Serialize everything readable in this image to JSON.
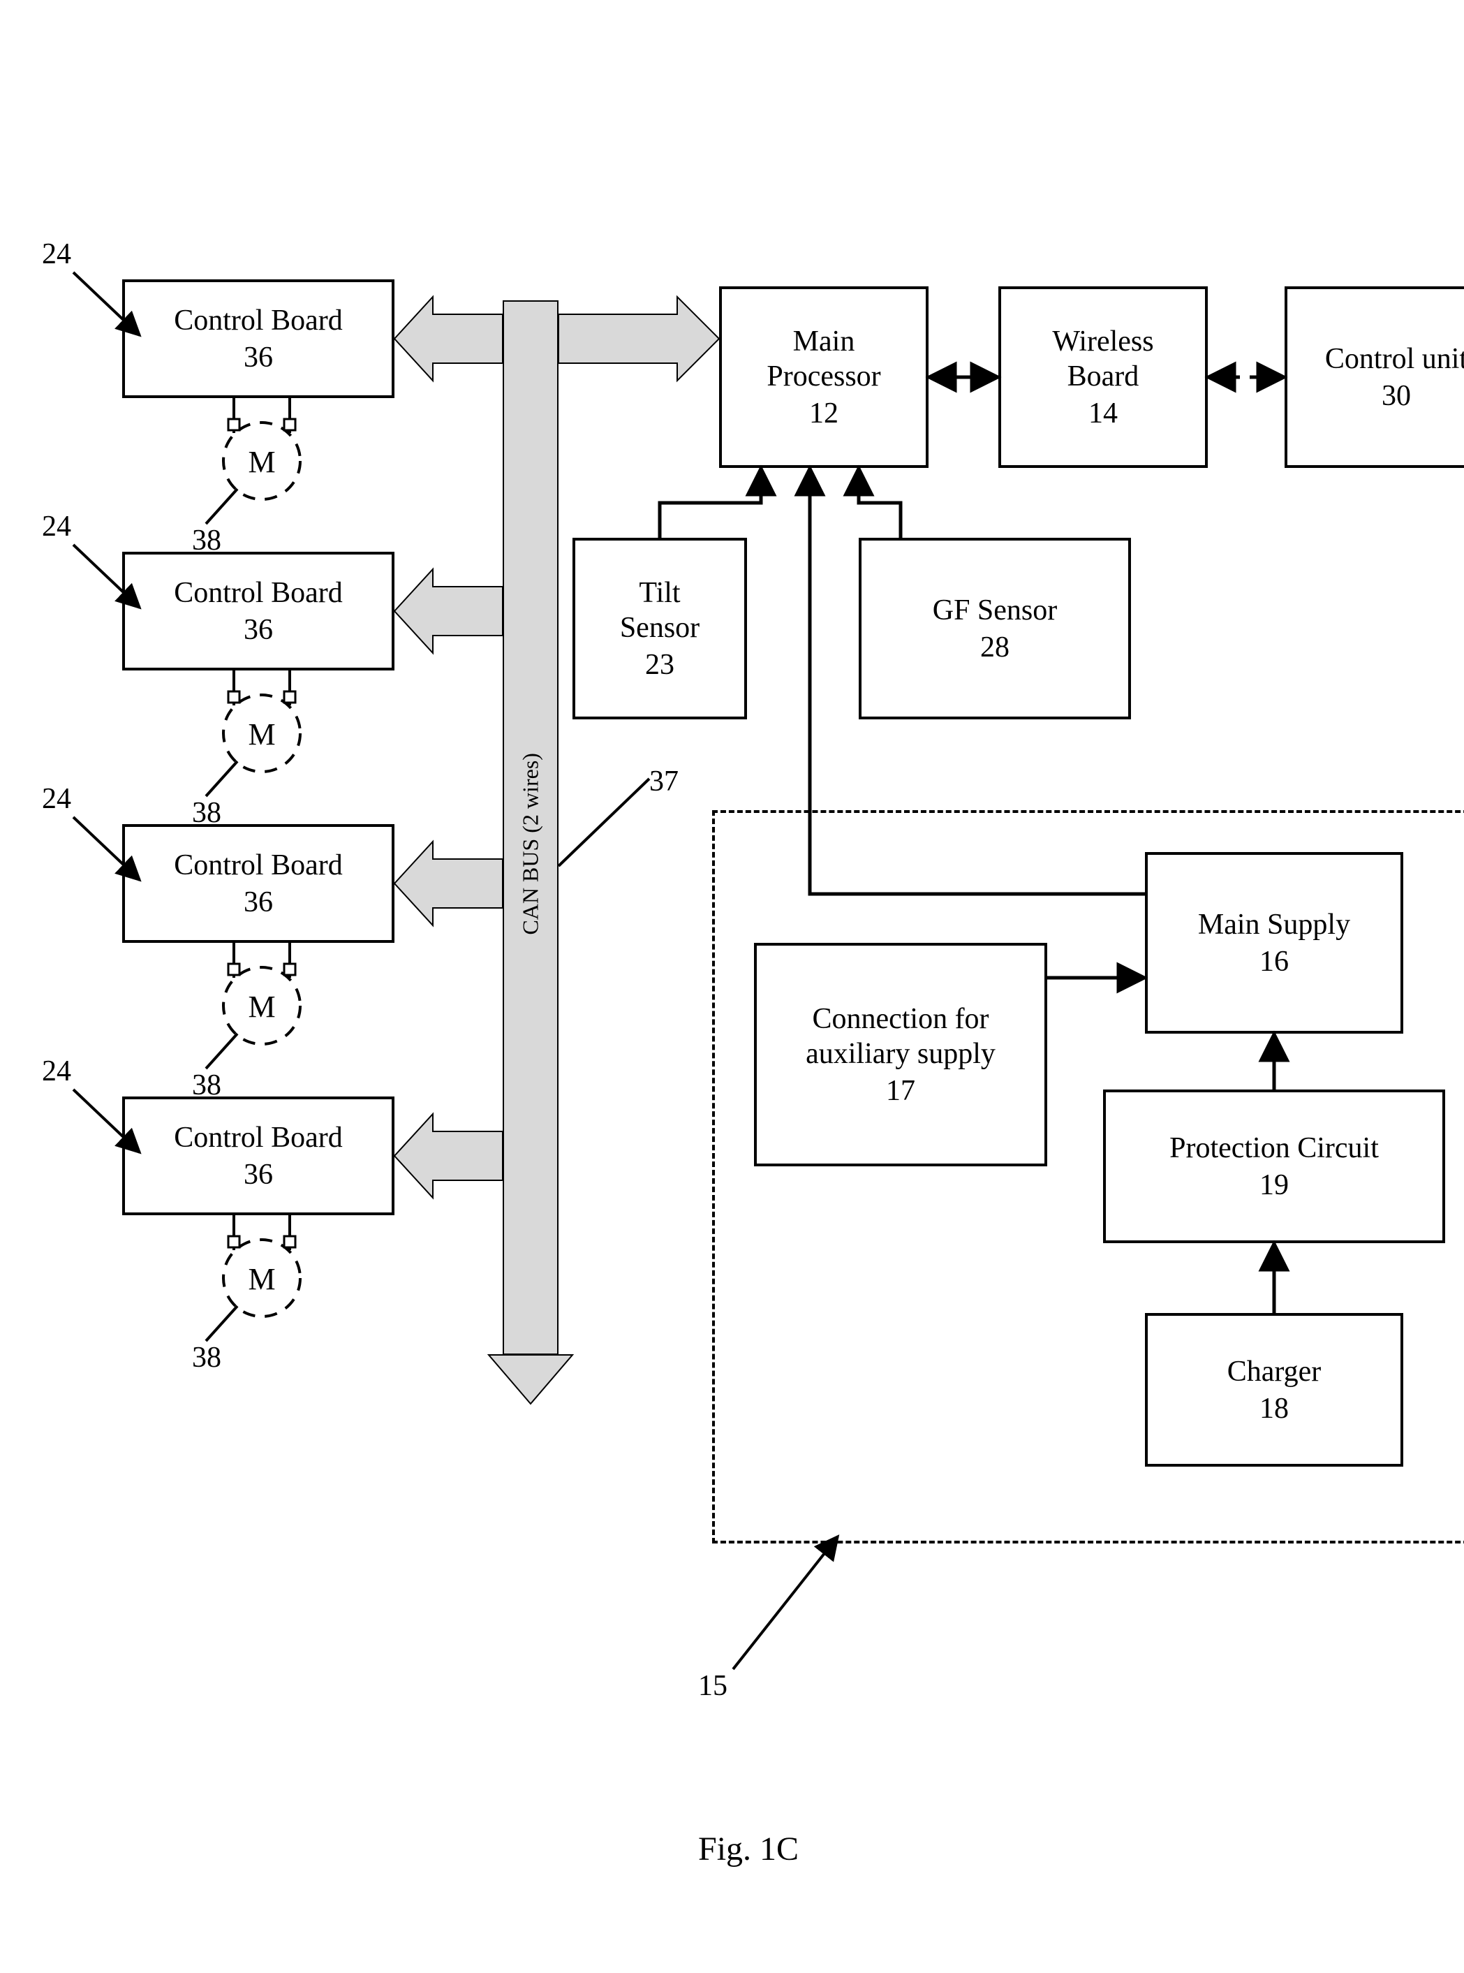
{
  "figure_caption": "Fig. 1C",
  "blocks": {
    "main_processor": {
      "label": "Main\nProcessor",
      "num": "12"
    },
    "wireless_board": {
      "label": "Wireless\nBoard",
      "num": "14"
    },
    "control_unit": {
      "label": "Control unit",
      "num": "30"
    },
    "gf_sensor": {
      "label": "GF Sensor",
      "num": "28"
    },
    "tilt_sensor": {
      "label": "Tilt\nSensor",
      "num": "23"
    },
    "main_supply": {
      "label": "Main Supply",
      "num": "16"
    },
    "aux_supply": {
      "label": "Connection for\nauxiliary supply",
      "num": "17"
    },
    "protection": {
      "label": "Protection Circuit",
      "num": "19"
    },
    "charger": {
      "label": "Charger",
      "num": "18"
    },
    "control_board": {
      "label": "Control Board",
      "num": "36"
    }
  },
  "bus_label": "CAN BUS (2 wires)",
  "motor_letter": "M",
  "refs": {
    "wheel": "24",
    "bus": "37",
    "motor": "38",
    "power_group": "15"
  },
  "colors": {
    "line": "#000000",
    "bus_fill": "#d9d9d9",
    "bg": "#ffffff"
  },
  "fontsizes": {
    "block": 42,
    "bus": 32,
    "caption": 48
  }
}
